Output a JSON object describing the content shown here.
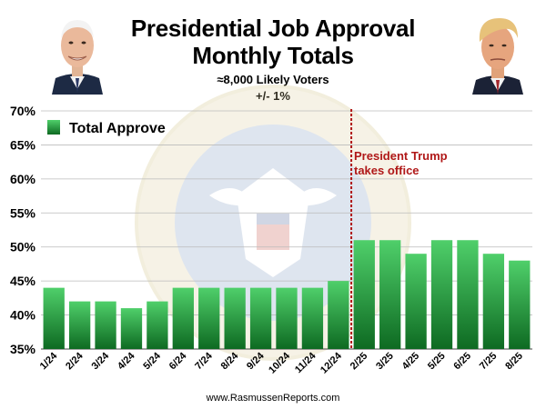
{
  "header": {
    "title_line1": "Presidential Job Approval",
    "title_line2": "Monthly Totals",
    "subtitle_line1": "≈8,000 Likely Voters",
    "subtitle_line2": "+/- 1%"
  },
  "footer": {
    "source": "www.RasmussenReports.com"
  },
  "colors": {
    "bar_top": "#4fcf6a",
    "bar_bottom": "#0e6a22",
    "divider": "#b01818",
    "annotation": "#b01818",
    "grid": "#bbbbbb"
  },
  "chart_data": {
    "type": "bar",
    "title": "Presidential Job Approval Monthly Totals",
    "categories": [
      "1/24",
      "2/24",
      "3/24",
      "4/24",
      "5/24",
      "6/24",
      "7/24",
      "8/24",
      "9/24",
      "10/24",
      "11/24",
      "12/24",
      "2/25",
      "3/25",
      "4/25",
      "5/25",
      "6/25",
      "7/25",
      "8/25"
    ],
    "series": [
      {
        "name": "Total Approve",
        "values": [
          44,
          42,
          42,
          41,
          42,
          44,
          44,
          44,
          44,
          44,
          44,
          45,
          51,
          51,
          49,
          51,
          51,
          49,
          48
        ]
      }
    ],
    "ylim": [
      35,
      70
    ],
    "yticks": [
      "35%",
      "40%",
      "45%",
      "50%",
      "55%",
      "60%",
      "65%",
      "70%"
    ],
    "ytick_values": [
      35,
      40,
      45,
      50,
      55,
      60,
      65,
      70
    ],
    "grid": true,
    "legend": "top-left",
    "annotation": {
      "text_line1": "President Trump",
      "text_line2": "takes office",
      "after_category": "12/24"
    }
  }
}
